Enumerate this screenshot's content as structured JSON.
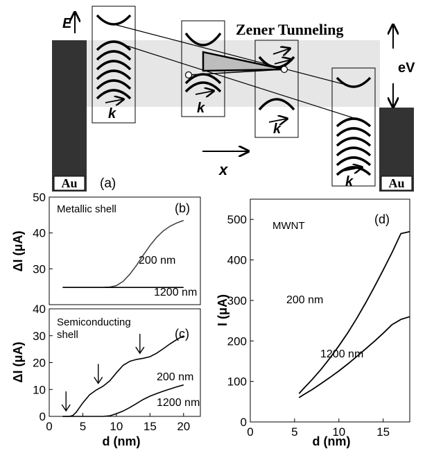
{
  "diagram": {
    "energy_label": "E",
    "zener_label": "Zener Tunneling",
    "bias_label": "eV",
    "x_label": "x",
    "k_label": "k",
    "electrode_left": "Au",
    "electrode_right": "Au",
    "panel_label": "(a)"
  },
  "colors": {
    "electrode": "#333333",
    "bias_band": "#e6e6e6",
    "tunnel_triangle": "#bdbdbd"
  },
  "chart_data": [
    {
      "type": "line",
      "panel": "(b)",
      "annotation": "Metallic shell",
      "ylabel": "ΔI (μA)",
      "ylim": [
        20,
        50
      ],
      "yticks": [
        30,
        40,
        50
      ],
      "xlim": [
        0,
        22.5
      ],
      "series": [
        {
          "name": "200 nm",
          "x": [
            2,
            4,
            6,
            8,
            9,
            10,
            11,
            12,
            13,
            14,
            15,
            16,
            17,
            18,
            19,
            20
          ],
          "y": [
            24.8,
            24.8,
            24.8,
            24.8,
            24.9,
            25.3,
            26.5,
            28.5,
            31.0,
            33.8,
            36.5,
            38.8,
            40.6,
            41.9,
            42.8,
            43.5
          ]
        },
        {
          "name": "1200 nm",
          "x": [
            2,
            20
          ],
          "y": [
            24.8,
            24.8
          ]
        }
      ]
    },
    {
      "type": "line",
      "panel": "(c)",
      "annotation": "Semiconducting shell",
      "ylabel": "ΔI (μA)",
      "xlabel": "d (nm)",
      "ylim": [
        0,
        40
      ],
      "yticks": [
        0,
        10,
        20,
        30,
        40
      ],
      "xlim": [
        0,
        22.5
      ],
      "xticks": [
        0,
        5,
        10,
        15,
        20
      ],
      "arrows_at_d": [
        2.5,
        7.3,
        13.5
      ],
      "series": [
        {
          "name": "200 nm",
          "x": [
            2,
            3,
            3.5,
            4,
            5,
            6,
            7,
            8,
            9,
            10,
            11,
            12,
            13,
            14,
            15,
            16,
            17,
            18,
            19,
            20
          ],
          "y": [
            0,
            0,
            0.3,
            1.5,
            5.0,
            8.0,
            9.8,
            11.2,
            13.2,
            16.2,
            19.0,
            20.5,
            21.2,
            21.6,
            22.2,
            23.5,
            25.2,
            27.0,
            28.6,
            30.0
          ]
        },
        {
          "name": "1200 nm",
          "x": [
            2,
            8,
            9,
            10,
            11,
            12,
            13,
            14,
            15,
            16,
            17,
            18,
            19,
            20
          ],
          "y": [
            0,
            0,
            0.2,
            1.0,
            2.0,
            3.3,
            4.8,
            6.3,
            7.5,
            8.5,
            9.4,
            10.2,
            11.0,
            11.7
          ]
        }
      ]
    },
    {
      "type": "line",
      "panel": "(d)",
      "annotation": "MWNT",
      "ylabel": "I (μA)",
      "xlabel": "d (nm)",
      "ylim": [
        0,
        550
      ],
      "yticks": [
        0,
        100,
        200,
        300,
        400,
        500
      ],
      "xlim": [
        0,
        18
      ],
      "xticks": [
        0,
        5,
        10,
        15
      ],
      "series": [
        {
          "name": "200 nm",
          "x": [
            5.5,
            6,
            7,
            8,
            9,
            10,
            11,
            12,
            13,
            14,
            15,
            16,
            17,
            18
          ],
          "y": [
            70,
            82,
            105,
            130,
            158,
            188,
            220,
            255,
            293,
            333,
            375,
            418,
            465,
            470
          ]
        },
        {
          "name": "1200 nm",
          "x": [
            5.5,
            6,
            7,
            8,
            9,
            10,
            11,
            12,
            13,
            14,
            15,
            16,
            17,
            18
          ],
          "y": [
            60,
            67,
            80,
            95,
            110,
            126,
            143,
            161,
            180,
            199,
            219,
            240,
            253,
            260
          ]
        }
      ]
    }
  ]
}
